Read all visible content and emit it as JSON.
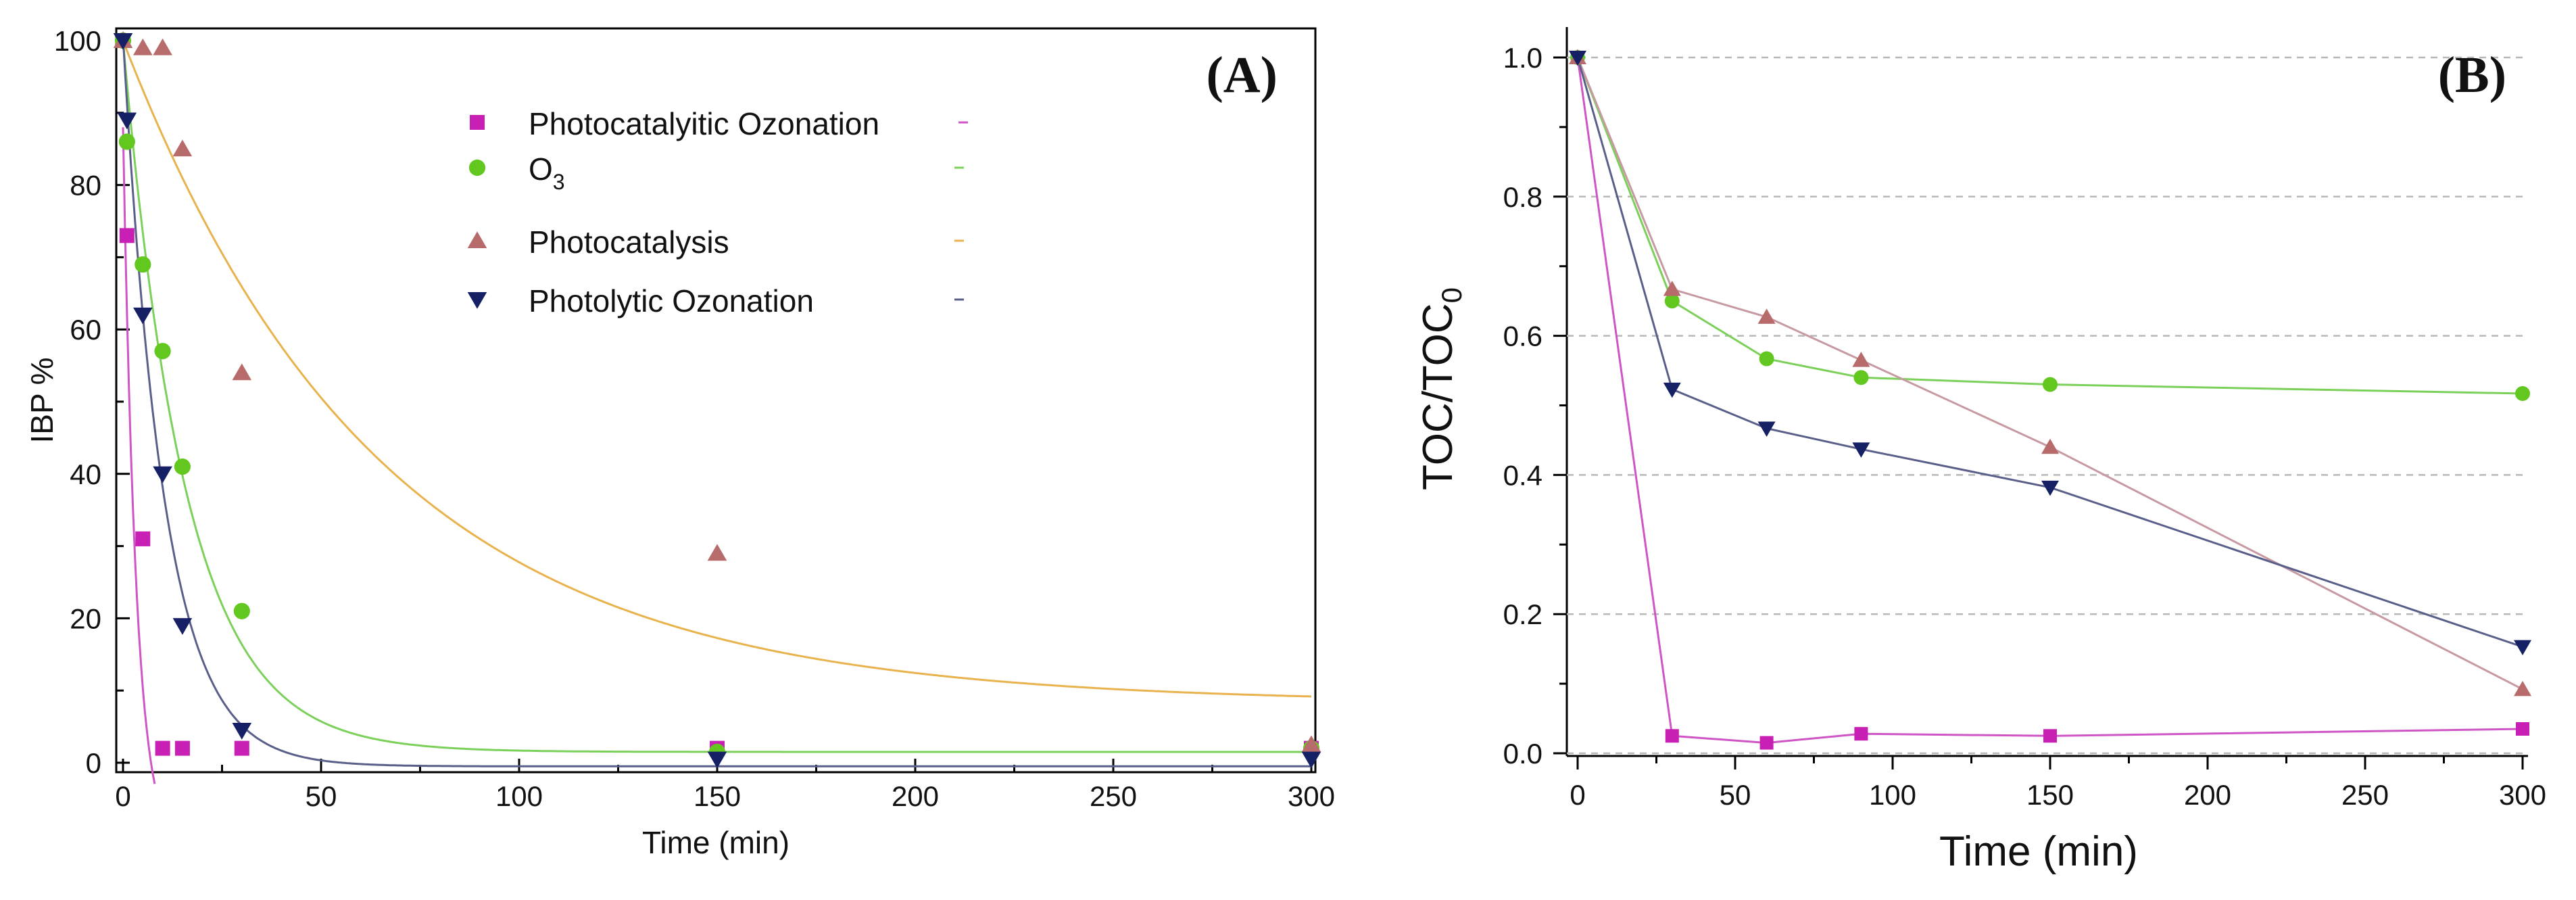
{
  "chart_data": [
    {
      "type": "scatter",
      "panel_label": "(A)",
      "title": "",
      "xlabel": "Time (min)",
      "ylabel": "IBP %",
      "xlim": [
        0,
        300
      ],
      "ylim": [
        0,
        100
      ],
      "xticks": [
        0,
        50,
        100,
        150,
        200,
        250,
        300
      ],
      "yticks": [
        0,
        20,
        40,
        60,
        80,
        100
      ],
      "legend_position": "top-center",
      "series": [
        {
          "name": "Photocatalyitic Ozonation",
          "marker": "square",
          "color": "#c81fb4",
          "line_color": "#cf55c6",
          "x": [
            0,
            1,
            5,
            10,
            15,
            30,
            150,
            300
          ],
          "y": [
            100,
            73,
            31,
            2,
            2,
            2,
            2,
            2
          ],
          "fit": {
            "model": "exponential",
            "a": 100,
            "k": 0.3,
            "c": -12
          }
        },
        {
          "name": "O3",
          "marker": "circle",
          "color": "#62c81f",
          "line_color": "#7bd05a",
          "x": [
            0,
            1,
            5,
            10,
            15,
            30,
            150,
            300
          ],
          "y": [
            100,
            86,
            69,
            57,
            41,
            21,
            1.5,
            2
          ],
          "fit": {
            "model": "exponential",
            "a": 98.5,
            "k": 0.063,
            "c": 1.5
          }
        },
        {
          "name": "Photocatalysis",
          "marker": "triangle-up",
          "color": "#b86b6b",
          "line_color": "#e8b24d",
          "x": [
            0,
            5,
            10,
            15,
            30,
            150,
            300
          ],
          "y": [
            100,
            99,
            99,
            85,
            54,
            29,
            2.5
          ],
          "fit": {
            "model": "exponential",
            "a": 91.7,
            "k": 0.0155,
            "c": 8.3
          }
        },
        {
          "name": "Photolytic Ozonation",
          "marker": "triangle-down",
          "color": "#152065",
          "line_color": "#5a5f8a",
          "x": [
            0,
            1,
            5,
            10,
            15,
            30,
            150,
            300
          ],
          "y": [
            100,
            89,
            62,
            40,
            19,
            4.5,
            0.5,
            0.5
          ],
          "fit": {
            "model": "exponential",
            "a": 101,
            "k": 0.096,
            "c": -0.5
          }
        }
      ]
    },
    {
      "type": "line",
      "panel_label": "(B)",
      "title": "",
      "xlabel": "Time (min)",
      "ylabel_main": "TOC/TOC",
      "ylabel_sub": "0",
      "xlim": [
        0,
        300
      ],
      "ylim": [
        0,
        1
      ],
      "xticks": [
        0,
        50,
        100,
        150,
        200,
        250,
        300
      ],
      "yticks": [
        "0.0",
        "0.2",
        "0.4",
        "0.6",
        "0.8",
        "1.0"
      ],
      "grid": "horizontal dashed",
      "series": [
        {
          "name": "Photocatalyitic Ozonation",
          "marker": "square",
          "color": "#c81fb4",
          "line_color": "#cf55c6",
          "x": [
            0,
            30,
            60,
            90,
            150,
            300
          ],
          "y": [
            1.0,
            0.025,
            0.015,
            0.028,
            0.025,
            0.035
          ]
        },
        {
          "name": "O3",
          "marker": "circle",
          "color": "#62c81f",
          "line_color": "#7bd05a",
          "x": [
            0,
            30,
            60,
            90,
            150,
            300
          ],
          "y": [
            1.0,
            0.65,
            0.567,
            0.54,
            0.53,
            0.517
          ]
        },
        {
          "name": "Photocatalysis",
          "marker": "triangle-up",
          "color": "#b86b6b",
          "line_color": "#c79aa2",
          "x": [
            0,
            30,
            60,
            90,
            150,
            300
          ],
          "y": [
            1.0,
            0.667,
            0.627,
            0.565,
            0.44,
            0.092
          ]
        },
        {
          "name": "Photolytic Ozonation",
          "marker": "triangle-down",
          "color": "#152065",
          "line_color": "#5a5f8a",
          "x": [
            0,
            30,
            60,
            90,
            150,
            300
          ],
          "y": [
            1.0,
            0.523,
            0.467,
            0.437,
            0.382,
            0.153
          ]
        }
      ]
    }
  ],
  "legend": {
    "items": [
      {
        "label": "Photocatalyitic Ozonation",
        "sub": "",
        "marker": "square",
        "color": "#c81fb4",
        "line_color": "#cf55c6"
      },
      {
        "label": "O",
        "sub": "3",
        "marker": "circle",
        "color": "#62c81f",
        "line_color": "#7bd05a"
      },
      {
        "label": "Photocatalysis",
        "sub": "",
        "marker": "triangle-up",
        "color": "#b86b6b",
        "line_color": "#e8b24d"
      },
      {
        "label": "Photolytic Ozonation",
        "sub": "",
        "marker": "triangle-down",
        "color": "#152065",
        "line_color": "#5a5f8a"
      }
    ]
  }
}
